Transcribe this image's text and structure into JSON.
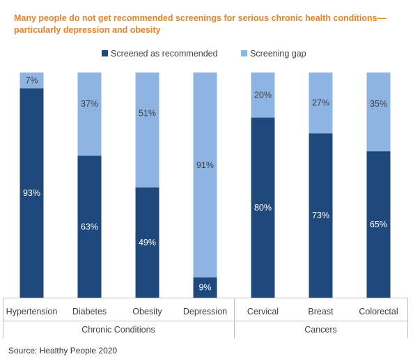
{
  "title_lines": [
    "Many people do not get recommended screenings for serious chronic health conditions—",
    "particularly depression and obesity"
  ],
  "source": "Source: Healthy People 2020",
  "colors": {
    "title": "#e8822a",
    "screened": "#1f497d",
    "gap": "#8eb4e3",
    "text": "#404040",
    "axis": "#bfbfbf"
  },
  "chart_data": {
    "type": "bar",
    "stacked": true,
    "categories": [
      "Hypertension",
      "Diabetes",
      "Obesity",
      "Depression",
      "Cervical",
      "Breast",
      "Colorectal"
    ],
    "groups": [
      {
        "label": "Chronic Conditions",
        "categories": [
          "Hypertension",
          "Diabetes",
          "Obesity",
          "Depression"
        ]
      },
      {
        "label": "Cancers",
        "categories": [
          "Cervical",
          "Breast",
          "Colorectal"
        ]
      }
    ],
    "series": [
      {
        "name": "Screened as recommended",
        "values": [
          93,
          63,
          49,
          9,
          80,
          73,
          65
        ],
        "labels": [
          "93%",
          "63%",
          "49%",
          "9%",
          "80%",
          "73%",
          "65%"
        ]
      },
      {
        "name": "Screening gap",
        "values": [
          7,
          37,
          51,
          91,
          20,
          27,
          35
        ],
        "labels": [
          "7%",
          "37%",
          "51%",
          "91%",
          "20%",
          "27%",
          "35%"
        ]
      }
    ],
    "ylim": [
      0,
      100
    ],
    "legend": "top-center",
    "grid": false
  }
}
